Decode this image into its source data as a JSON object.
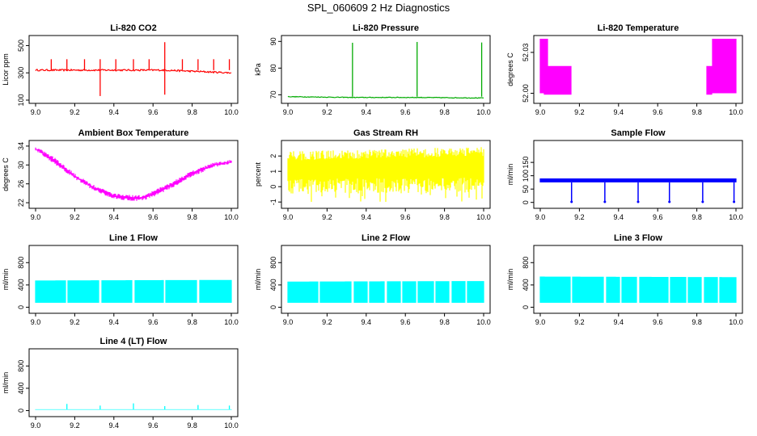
{
  "title": "SPL_060609  2 Hz Diagnostics",
  "chart_data": [
    {
      "type": "line",
      "title": "Li-820 CO2",
      "xlabel": "",
      "ylabel": "Licor ppm",
      "xlim": [
        9.0,
        10.0
      ],
      "ylim": [
        100,
        550
      ],
      "xticks": [
        "9.0",
        "9.2",
        "9.4",
        "9.6",
        "9.8",
        "10.0"
      ],
      "yticks": [
        100,
        300,
        500
      ],
      "grid": false,
      "series": [
        {
          "color": "#ff0000",
          "baseline": 320,
          "noise": 12,
          "x": [
            9.0,
            9.33,
            9.66,
            10.0
          ],
          "y": [
            320,
            320,
            320,
            300
          ],
          "spikes": [
            {
              "x": 9.08,
              "y": 400
            },
            {
              "x": 9.16,
              "y": 400
            },
            {
              "x": 9.25,
              "y": 400
            },
            {
              "x": 9.33,
              "y": 130
            },
            {
              "x": 9.33,
              "y": 400
            },
            {
              "x": 9.41,
              "y": 400
            },
            {
              "x": 9.5,
              "y": 400
            },
            {
              "x": 9.58,
              "y": 400
            },
            {
              "x": 9.66,
              "y": 525
            },
            {
              "x": 9.66,
              "y": 140
            },
            {
              "x": 9.75,
              "y": 400
            },
            {
              "x": 9.83,
              "y": 400
            },
            {
              "x": 9.91,
              "y": 400
            },
            {
              "x": 9.99,
              "y": 400
            }
          ]
        }
      ]
    },
    {
      "type": "line",
      "title": "Li-820 Pressure",
      "xlabel": "",
      "ylabel": "kPa",
      "xlim": [
        9.0,
        10.0
      ],
      "ylim": [
        68,
        91
      ],
      "xticks": [
        "9.0",
        "9.2",
        "9.4",
        "9.6",
        "9.8",
        "10.0"
      ],
      "yticks": [
        70,
        80,
        90
      ],
      "grid": false,
      "series": [
        {
          "color": "#00aa00",
          "x": [
            9.0,
            9.33,
            9.66,
            10.0
          ],
          "y": [
            69.3,
            69.0,
            69.0,
            68.8
          ],
          "spikes": [
            {
              "x": 9.33,
              "y": 89.5
            },
            {
              "x": 9.66,
              "y": 89.8
            },
            {
              "x": 9.99,
              "y": 89.6
            }
          ]
        }
      ]
    },
    {
      "type": "area",
      "title": "Li-820 Temperature",
      "xlabel": "",
      "ylabel": "degrees C",
      "xlim": [
        9.0,
        10.0
      ],
      "ylim": [
        51.995,
        52.04
      ],
      "xticks": [
        "9.0",
        "9.2",
        "9.4",
        "9.6",
        "9.8",
        "10.0"
      ],
      "yticks": [
        "52.00",
        "52.03"
      ],
      "grid": false,
      "series": [
        {
          "color": "#ff00ff",
          "x": [
            9.0,
            9.02,
            9.02,
            9.04,
            9.04,
            9.16,
            9.16,
            9.85,
            9.85,
            9.88,
            9.88,
            10.0
          ],
          "low": [
            52.0,
            52.0,
            51.999,
            51.999,
            51.999,
            51.999,
            51.999,
            51.999,
            51.999,
            51.999,
            52.0,
            52.0
          ],
          "high": [
            52.04,
            52.04,
            52.04,
            52.04,
            52.02,
            52.02,
            51.999,
            51.999,
            52.02,
            52.02,
            52.04,
            52.04
          ]
        }
      ]
    },
    {
      "type": "line",
      "title": "Ambient Box Temperature",
      "xlabel": "",
      "ylabel": "degrees C",
      "xlim": [
        9.0,
        10.0
      ],
      "ylim": [
        21.5,
        34.5
      ],
      "xticks": [
        "9.0",
        "9.2",
        "9.4",
        "9.6",
        "9.8",
        "10.0"
      ],
      "yticks": [
        22,
        26,
        30,
        34
      ],
      "grid": false,
      "series": [
        {
          "color": "#ff00ff",
          "x": [
            9.0,
            9.1,
            9.2,
            9.3,
            9.4,
            9.5,
            9.55,
            9.6,
            9.7,
            9.8,
            9.9,
            10.0
          ],
          "low": [
            33.0,
            30.0,
            27.0,
            24.5,
            22.8,
            22.3,
            22.5,
            23.2,
            25.2,
            27.5,
            29.3,
            30.3
          ],
          "high": [
            34.0,
            31.5,
            28.2,
            25.7,
            24.0,
            23.6,
            23.6,
            24.6,
            26.5,
            28.8,
            30.4,
            31.2
          ]
        }
      ]
    },
    {
      "type": "area",
      "title": "Gas Stream RH",
      "xlabel": "",
      "ylabel": "percent",
      "xlim": [
        9.0,
        10.0
      ],
      "ylim": [
        -1.2,
        2.8
      ],
      "xticks": [
        "9.0",
        "9.2",
        "9.4",
        "9.6",
        "9.8",
        "10.0"
      ],
      "yticks": [
        -1,
        0,
        1,
        2
      ],
      "grid": false,
      "series": [
        {
          "color": "#ffff00",
          "x": [
            9.0,
            10.0
          ],
          "low": [
            -0.5,
            -0.4
          ],
          "high": [
            2.3,
            2.6
          ]
        }
      ]
    },
    {
      "type": "line",
      "title": "Sample Flow",
      "xlabel": "",
      "ylabel": "ml/min",
      "xlim": [
        9.0,
        10.0
      ],
      "ylim": [
        -10,
        220
      ],
      "xticks": [
        "9.0",
        "9.2",
        "9.4",
        "9.6",
        "9.8",
        "10.0"
      ],
      "yticks": [
        0,
        50,
        100,
        150
      ],
      "grid": false,
      "series": [
        {
          "color": "#0000ff",
          "x": [
            9.0,
            10.0
          ],
          "low": [
            75,
            75
          ],
          "high": [
            90,
            90
          ],
          "dips": [
            9.16,
            9.33,
            9.5,
            9.66,
            9.83,
            9.99
          ],
          "dip_value": 2
        }
      ]
    },
    {
      "type": "area",
      "title": "Line 1 Flow",
      "xlabel": "",
      "ylabel": "ml/min",
      "xlim": [
        9.0,
        10.0
      ],
      "ylim": [
        -50,
        1050
      ],
      "xticks": [
        "9.0",
        "9.2",
        "9.4",
        "9.6",
        "9.8",
        "10.0"
      ],
      "yticks": [
        0,
        400,
        800
      ],
      "grid": false,
      "series": [
        {
          "color": "#00ffff",
          "x": [
            9.0,
            10.0
          ],
          "low": [
            80,
            80
          ],
          "high": [
            480,
            490
          ],
          "gaps": [
            9.16,
            9.33,
            9.5,
            9.66,
            9.83
          ]
        }
      ]
    },
    {
      "type": "area",
      "title": "Line 2 Flow",
      "xlabel": "",
      "ylabel": "ml/min",
      "xlim": [
        9.0,
        10.0
      ],
      "ylim": [
        -50,
        1050
      ],
      "xticks": [
        "9.0",
        "9.2",
        "9.4",
        "9.6",
        "9.8",
        "10.0"
      ],
      "yticks": [
        0,
        400,
        800
      ],
      "grid": false,
      "series": [
        {
          "color": "#00ffff",
          "x": [
            9.0,
            10.0
          ],
          "low": [
            80,
            80
          ],
          "high": [
            460,
            470
          ],
          "gaps": [
            9.16,
            9.33,
            9.41,
            9.5,
            9.58,
            9.66,
            9.75,
            9.83,
            9.91
          ]
        }
      ]
    },
    {
      "type": "area",
      "title": "Line 3 Flow",
      "xlabel": "",
      "ylabel": "ml/min",
      "xlim": [
        9.0,
        10.0
      ],
      "ylim": [
        -50,
        1050
      ],
      "xticks": [
        "9.0",
        "9.2",
        "9.4",
        "9.6",
        "9.8",
        "10.0"
      ],
      "yticks": [
        0,
        400,
        800
      ],
      "grid": false,
      "series": [
        {
          "color": "#00ffff",
          "x": [
            9.0,
            10.0
          ],
          "low": [
            80,
            80
          ],
          "high": [
            550,
            540
          ],
          "gaps": [
            9.16,
            9.33,
            9.41,
            9.5,
            9.66,
            9.75,
            9.83,
            9.91
          ]
        }
      ]
    },
    {
      "type": "line",
      "title": "Line 4 (LT) Flow",
      "xlabel": "",
      "ylabel": "ml/min",
      "xlim": [
        9.0,
        10.0
      ],
      "ylim": [
        -50,
        1050
      ],
      "xticks": [
        "9.0",
        "9.2",
        "9.4",
        "9.6",
        "9.8",
        "10.0"
      ],
      "yticks": [
        0,
        400,
        800
      ],
      "grid": false,
      "series": [
        {
          "color": "#00ffff",
          "x": [
            9.0,
            10.0
          ],
          "low": [
            15,
            15
          ],
          "high": [
            25,
            25
          ],
          "spikes": [
            {
              "x": 9.16,
              "y": 120
            },
            {
              "x": 9.33,
              "y": 90
            },
            {
              "x": 9.5,
              "y": 130
            },
            {
              "x": 9.66,
              "y": 80
            },
            {
              "x": 9.83,
              "y": 100
            },
            {
              "x": 9.99,
              "y": 90
            }
          ]
        }
      ]
    }
  ]
}
